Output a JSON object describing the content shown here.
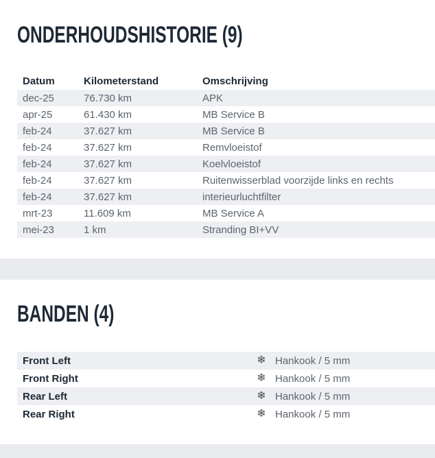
{
  "colors": {
    "heading": "#1d2935",
    "body_text": "#5d646c",
    "row_stripe": "#edeff2",
    "section_band": "#e9ebef"
  },
  "maintenance": {
    "title": "ONDERHOUDSHISTORIE (9)",
    "columns": {
      "datum": "Datum",
      "kilometerstand": "Kilometerstand",
      "omschrijving": "Omschrijving"
    },
    "rows": [
      {
        "datum": "dec-25",
        "kilometerstand": "76.730 km",
        "omschrijving": "APK"
      },
      {
        "datum": "apr-25",
        "kilometerstand": "61.430 km",
        "omschrijving": "MB Service B"
      },
      {
        "datum": "feb-24",
        "kilometerstand": "37.627 km",
        "omschrijving": "MB Service B"
      },
      {
        "datum": "feb-24",
        "kilometerstand": "37.627 km",
        "omschrijving": "Remvloeistof"
      },
      {
        "datum": "feb-24",
        "kilometerstand": "37.627 km",
        "omschrijving": "Koelvloeistof"
      },
      {
        "datum": "feb-24",
        "kilometerstand": "37.627 km",
        "omschrijving": "Ruitenwisserblad voorzijde links en rechts"
      },
      {
        "datum": "feb-24",
        "kilometerstand": "37.627 km",
        "omschrijving": "interieurluchtfilter"
      },
      {
        "datum": "mrt-23",
        "kilometerstand": "11.609 km",
        "omschrijving": "MB Service A"
      },
      {
        "datum": "mei-23",
        "kilometerstand": "1 km",
        "omschrijving": "Stranding BI+VV"
      }
    ]
  },
  "tires": {
    "title": "BANDEN (4)",
    "icon_glyph": "❄",
    "rows": [
      {
        "position": "Front Left",
        "value": "Hankook / 5 mm"
      },
      {
        "position": "Front Right",
        "value": "Hankook / 5 mm"
      },
      {
        "position": "Rear Left",
        "value": "Hankook / 5 mm"
      },
      {
        "position": "Rear Right",
        "value": "Hankook / 5 mm"
      }
    ]
  }
}
